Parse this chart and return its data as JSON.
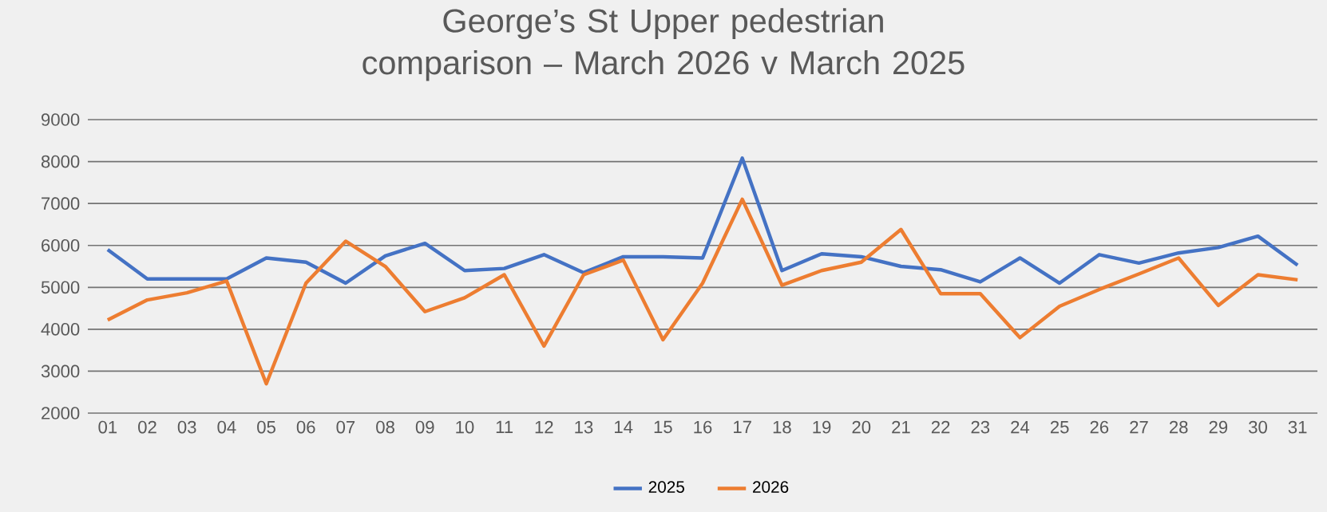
{
  "chart_data": {
    "type": "line",
    "title": "George’s St Upper pedestrian comparison – March 2026 v March 2025",
    "categories": [
      "01",
      "02",
      "03",
      "04",
      "05",
      "06",
      "07",
      "08",
      "09",
      "10",
      "11",
      "12",
      "13",
      "14",
      "15",
      "16",
      "17",
      "18",
      "19",
      "20",
      "21",
      "22",
      "23",
      "24",
      "25",
      "26",
      "27",
      "28",
      "29",
      "30",
      "31"
    ],
    "series": [
      {
        "name": "2025",
        "color": "#4472c4",
        "values": [
          5900,
          5200,
          5200,
          5200,
          5700,
          5600,
          5100,
          5750,
          6050,
          5400,
          5450,
          5780,
          5350,
          5730,
          5730,
          5700,
          8080,
          5400,
          5800,
          5730,
          5500,
          5420,
          5130,
          5700,
          5100,
          5780,
          5580,
          5820,
          5950,
          6220,
          5530
        ]
      },
      {
        "name": "2026",
        "color": "#ed7d31",
        "values": [
          4220,
          4700,
          4870,
          5150,
          2700,
          5100,
          6100,
          5500,
          4420,
          4750,
          5300,
          3600,
          5300,
          5650,
          3750,
          5100,
          7100,
          5050,
          5400,
          5600,
          6380,
          4850,
          4850,
          3800,
          4550,
          4950,
          5320,
          5700,
          4570,
          5300,
          5180
        ]
      }
    ],
    "ylim": [
      2000,
      9000
    ],
    "yticks": [
      2000,
      3000,
      4000,
      5000,
      6000,
      7000,
      8000,
      9000
    ],
    "grid": "y",
    "legend": "bottom",
    "marker": "none",
    "line_style": "solid"
  }
}
